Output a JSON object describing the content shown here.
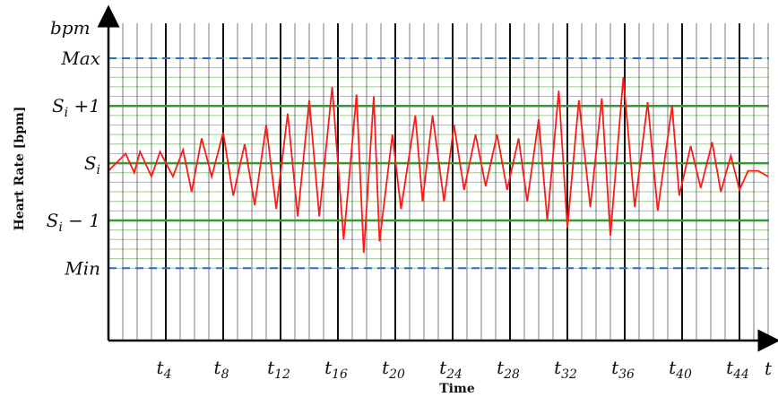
{
  "chart_data": {
    "type": "line",
    "title": "",
    "xlabel": "Time",
    "ylabel": "Heart Rate [bpm]",
    "y_axis_unit": "bpm",
    "x_axis_end_label": "t",
    "x_tick_labels": [
      {
        "base": "t",
        "sub": "4",
        "step": 4
      },
      {
        "base": "t",
        "sub": "8",
        "step": 8
      },
      {
        "base": "t",
        "sub": "12",
        "step": 12
      },
      {
        "base": "t",
        "sub": "16",
        "step": 16
      },
      {
        "base": "t",
        "sub": "20",
        "step": 20
      },
      {
        "base": "t",
        "sub": "24",
        "step": 24
      },
      {
        "base": "t",
        "sub": "28",
        "step": 28
      },
      {
        "base": "t",
        "sub": "32",
        "step": 32
      },
      {
        "base": "t",
        "sub": "36",
        "step": 36
      },
      {
        "base": "t",
        "sub": "40",
        "step": 40
      },
      {
        "base": "t",
        "sub": "44",
        "step": 44
      }
    ],
    "levels": {
      "max": {
        "label": "Max",
        "value": 8.5
      },
      "s_plus": {
        "base": "S",
        "sub": "i",
        "suffix": " +1",
        "value": 6
      },
      "s": {
        "base": "S",
        "sub": "i",
        "suffix": "",
        "value": 3
      },
      "s_minus": {
        "base": "S",
        "sub": "i",
        "suffix": " − 1",
        "value": 0
      },
      "min": {
        "label": "Min",
        "value": -2.5
      }
    },
    "ylim": [
      -7,
      11
    ],
    "xlim": [
      0,
      46
    ],
    "fine_grid_step": 0.5,
    "colors": {
      "series": "#ff1a1a",
      "level_lines": "#2e9e2e",
      "fine_grid": "#9ccc8c",
      "bounds": "#2b6cc4",
      "vertical_grid": "#111111"
    },
    "series": [
      {
        "values": [
          [
            0.0,
            2.6
          ],
          [
            1.2,
            3.5
          ],
          [
            1.8,
            2.5
          ],
          [
            2.2,
            3.6
          ],
          [
            3.0,
            2.3
          ],
          [
            3.6,
            3.6
          ],
          [
            4.5,
            2.3
          ],
          [
            5.2,
            3.7
          ],
          [
            5.8,
            1.5
          ],
          [
            6.5,
            4.3
          ],
          [
            7.2,
            2.3
          ],
          [
            8.0,
            4.6
          ],
          [
            8.7,
            1.3
          ],
          [
            9.5,
            4.0
          ],
          [
            10.2,
            0.8
          ],
          [
            11.0,
            5.0
          ],
          [
            11.7,
            0.6
          ],
          [
            12.5,
            5.6
          ],
          [
            13.2,
            0.2
          ],
          [
            14.0,
            6.3
          ],
          [
            14.7,
            0.2
          ],
          [
            15.6,
            7.0
          ],
          [
            16.4,
            -1.0
          ],
          [
            17.3,
            6.6
          ],
          [
            17.8,
            -1.7
          ],
          [
            18.5,
            6.5
          ],
          [
            18.9,
            -1.1
          ],
          [
            19.8,
            4.5
          ],
          [
            20.4,
            0.6
          ],
          [
            21.4,
            5.5
          ],
          [
            21.9,
            1.0
          ],
          [
            22.6,
            5.5
          ],
          [
            23.4,
            1.0
          ],
          [
            24.1,
            5.0
          ],
          [
            24.8,
            1.6
          ],
          [
            25.6,
            4.5
          ],
          [
            26.3,
            1.8
          ],
          [
            27.1,
            4.5
          ],
          [
            27.8,
            1.6
          ],
          [
            28.6,
            4.3
          ],
          [
            29.2,
            1.0
          ],
          [
            30.0,
            5.3
          ],
          [
            30.6,
            0.0
          ],
          [
            31.4,
            6.8
          ],
          [
            32.0,
            -0.4
          ],
          [
            32.8,
            6.3
          ],
          [
            33.6,
            0.7
          ],
          [
            34.4,
            6.4
          ],
          [
            35.0,
            -0.8
          ],
          [
            35.9,
            7.5
          ],
          [
            36.7,
            0.7
          ],
          [
            37.6,
            6.2
          ],
          [
            38.3,
            0.5
          ],
          [
            39.3,
            6.0
          ],
          [
            39.8,
            1.3
          ],
          [
            40.6,
            3.9
          ],
          [
            41.3,
            1.7
          ],
          [
            42.1,
            4.1
          ],
          [
            42.7,
            1.5
          ],
          [
            43.4,
            3.4
          ],
          [
            44.0,
            1.6
          ],
          [
            44.6,
            2.6
          ],
          [
            45.3,
            2.6
          ],
          [
            46.0,
            2.3
          ]
        ]
      }
    ],
    "grid": true,
    "legend": "none"
  }
}
